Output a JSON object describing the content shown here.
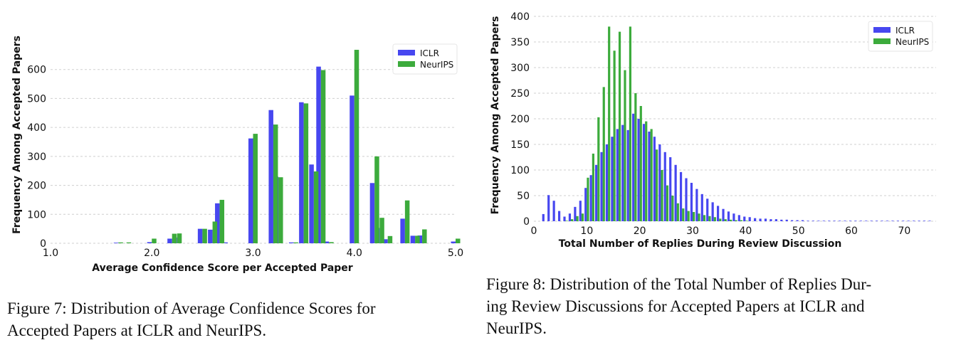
{
  "chart_data": [
    {
      "type": "bar",
      "xlabel": "Average Confidence Score per Accepted Paper",
      "ylabel": "Frequency Among Accepted Papers",
      "xlim": [
        1.0,
        5.0
      ],
      "ylim": [
        0,
        700
      ],
      "xticks": [
        "1.0",
        "2.0",
        "3.0",
        "4.0",
        "5.0"
      ],
      "yticks": [
        "0",
        "100",
        "200",
        "300",
        "400",
        "500",
        "600"
      ],
      "grid": "horizontal dashed",
      "legend_position": "top-right",
      "colors": {
        "ICLR": "#4747f0",
        "NeurIPS": "#3cab3c"
      },
      "series": [
        {
          "name": "ICLR",
          "points": [
            [
              1.67,
              2
            ],
            [
              2.0,
              4
            ],
            [
              2.2,
              16
            ],
            [
              2.25,
              20
            ],
            [
              2.5,
              50
            ],
            [
              2.6,
              47
            ],
            [
              2.67,
              138
            ],
            [
              2.75,
              3
            ],
            [
              3.0,
              362
            ],
            [
              3.2,
              460
            ],
            [
              3.25,
              230
            ],
            [
              3.4,
              3
            ],
            [
              3.5,
              487
            ],
            [
              3.6,
              272
            ],
            [
              3.67,
              610
            ],
            [
              3.75,
              6
            ],
            [
              4.0,
              510
            ],
            [
              4.2,
              208
            ],
            [
              4.25,
              53
            ],
            [
              4.33,
              14
            ],
            [
              4.5,
              85
            ],
            [
              4.6,
              26
            ],
            [
              4.67,
              27
            ],
            [
              5.0,
              6
            ]
          ]
        },
        {
          "name": "NeurIPS",
          "points": [
            [
              1.67,
              3
            ],
            [
              1.75,
              3
            ],
            [
              2.0,
              16
            ],
            [
              2.2,
              33
            ],
            [
              2.25,
              34
            ],
            [
              2.5,
              50
            ],
            [
              2.6,
              75
            ],
            [
              2.67,
              150
            ],
            [
              3.0,
              378
            ],
            [
              3.2,
              410
            ],
            [
              3.25,
              228
            ],
            [
              3.4,
              3
            ],
            [
              3.5,
              483
            ],
            [
              3.6,
              248
            ],
            [
              3.67,
              598
            ],
            [
              3.75,
              4
            ],
            [
              4.0,
              668
            ],
            [
              4.2,
              300
            ],
            [
              4.25,
              88
            ],
            [
              4.33,
              25
            ],
            [
              4.5,
              148
            ],
            [
              4.6,
              26
            ],
            [
              4.67,
              48
            ],
            [
              5.0,
              16
            ]
          ]
        }
      ]
    },
    {
      "type": "bar",
      "xlabel": "Total Number of Replies During Review Discussion",
      "ylabel": "Frequency Among Accepted Papers",
      "xlim": [
        0,
        76
      ],
      "ylim": [
        0,
        400
      ],
      "xticks": [
        "0",
        "10",
        "20",
        "30",
        "40",
        "50",
        "60",
        "70"
      ],
      "yticks": [
        "0",
        "50",
        "100",
        "150",
        "200",
        "250",
        "300",
        "350",
        "400"
      ],
      "grid": "horizontal dashed",
      "legend_position": "top-right",
      "colors": {
        "ICLR": "#4747f0",
        "NeurIPS": "#3cab3c"
      },
      "series": [
        {
          "name": "ICLR",
          "x": [
            2,
            3,
            4,
            5,
            6,
            7,
            8,
            9,
            10,
            11,
            12,
            13,
            14,
            15,
            16,
            17,
            18,
            19,
            20,
            21,
            22,
            23,
            24,
            25,
            26,
            27,
            28,
            29,
            30,
            31,
            32,
            33,
            34,
            35,
            36,
            37,
            38,
            39,
            40,
            41,
            42,
            43,
            44,
            45,
            46,
            47,
            48,
            49,
            50,
            51,
            52,
            53,
            54,
            55,
            56,
            57,
            58,
            59,
            60,
            61,
            62,
            63,
            64,
            65,
            66,
            67,
            68,
            69,
            70,
            71,
            72,
            73,
            74,
            75
          ],
          "values": [
            14,
            51,
            40,
            20,
            9,
            15,
            28,
            40,
            65,
            90,
            110,
            135,
            150,
            165,
            180,
            188,
            178,
            210,
            200,
            190,
            175,
            165,
            150,
            135,
            125,
            110,
            96,
            84,
            75,
            63,
            53,
            44,
            37,
            30,
            24,
            19,
            15,
            12,
            9,
            8,
            6,
            5,
            5,
            4,
            4,
            3,
            3,
            2,
            2,
            2,
            1,
            1,
            1,
            1,
            1,
            1,
            1,
            1,
            1,
            1,
            1,
            1,
            1,
            1,
            1,
            1,
            1,
            1,
            1,
            1,
            1,
            1,
            1,
            1
          ]
        },
        {
          "name": "NeurIPS",
          "x": [
            6,
            7,
            8,
            9,
            10,
            11,
            12,
            13,
            14,
            15,
            16,
            17,
            18,
            19,
            20,
            21,
            22,
            23,
            24,
            25,
            26,
            27,
            28,
            29,
            30,
            31,
            32,
            33,
            34,
            35,
            36,
            37,
            38,
            39,
            40
          ],
          "values": [
            1,
            4,
            10,
            15,
            85,
            132,
            203,
            262,
            380,
            333,
            370,
            295,
            380,
            250,
            225,
            195,
            180,
            140,
            100,
            70,
            50,
            35,
            25,
            20,
            18,
            15,
            12,
            10,
            8,
            5,
            4,
            3,
            2,
            2,
            1
          ]
        }
      ]
    }
  ],
  "captions": {
    "fig7": [
      "Figure 7:  Distribution of Average Confidence Scores for",
      "Accepted Papers at ICLR and NeurIPS."
    ],
    "fig8": [
      "Figure 8: Distribution of the Total Number of Replies Dur-",
      "ing Review Discussions for Accepted Papers at ICLR and",
      "NeurIPS."
    ]
  }
}
